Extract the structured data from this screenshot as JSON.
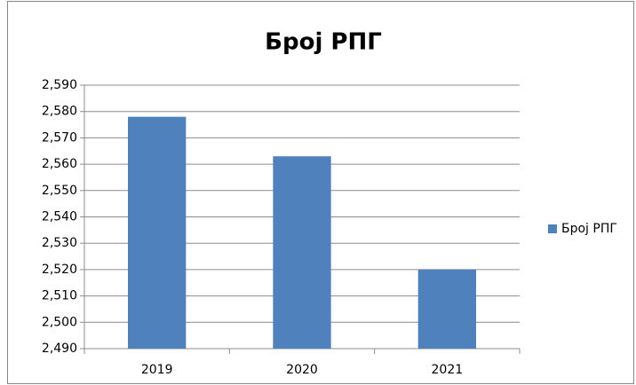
{
  "chart_data": {
    "type": "bar",
    "title": "Број РПГ",
    "categories": [
      "2019",
      "2020",
      "2021"
    ],
    "series": [
      {
        "name": "Број РПГ",
        "color": "#4f81bd",
        "values": [
          2578,
          2563,
          2520
        ]
      }
    ],
    "ylim": [
      2490,
      2590
    ],
    "yticks": [
      {
        "value": 2490,
        "label": "2,490"
      },
      {
        "value": 2500,
        "label": "2,500"
      },
      {
        "value": 2510,
        "label": "2,510"
      },
      {
        "value": 2520,
        "label": "2,520"
      },
      {
        "value": 2530,
        "label": "2,530"
      },
      {
        "value": 2540,
        "label": "2,540"
      },
      {
        "value": 2550,
        "label": "2,550"
      },
      {
        "value": 2560,
        "label": "2,560"
      },
      {
        "value": 2570,
        "label": "2,570"
      },
      {
        "value": 2580,
        "label": "2,580"
      },
      {
        "value": 2590,
        "label": "2,590"
      }
    ],
    "grid": true,
    "legend": "right"
  }
}
